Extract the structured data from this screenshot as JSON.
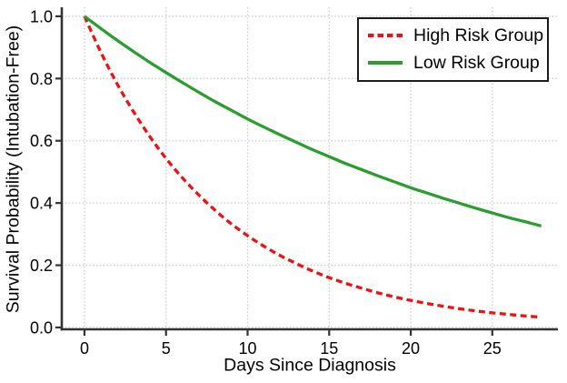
{
  "chart_data": {
    "type": "line",
    "xlabel": "Days Since Diagnosis",
    "ylabel": "Survival Probability (Intubation-Free)",
    "xlim": [
      -1.39,
      29.02
    ],
    "ylim": [
      -0.006,
      1.029
    ],
    "xticks": [
      0,
      5,
      10,
      15,
      20,
      25
    ],
    "xtick_labels": [
      "0",
      "5",
      "10",
      "15",
      "20",
      "25"
    ],
    "yticks": [
      0.0,
      0.2,
      0.4,
      0.6,
      0.8,
      1.0
    ],
    "ytick_labels": [
      "0.0",
      "0.2",
      "0.4",
      "0.6",
      "0.8",
      "1.0"
    ],
    "grid": true,
    "grid_style": "dotted",
    "legend_position": "upper right",
    "x": [
      0,
      1,
      2,
      3,
      4,
      5,
      6,
      7,
      8,
      9,
      10,
      11,
      12,
      13,
      14,
      15,
      16,
      17,
      18,
      19,
      20,
      21,
      22,
      23,
      24,
      25,
      26,
      27,
      28
    ],
    "series": [
      {
        "name": "High Risk Group",
        "color": "#ee1111",
        "style": "dashed",
        "values": [
          1.0,
          0.885,
          0.783,
          0.694,
          0.614,
          0.543,
          0.481,
          0.426,
          0.377,
          0.333,
          0.295,
          0.261,
          0.231,
          0.205,
          0.181,
          0.16,
          0.142,
          0.126,
          0.111,
          0.098,
          0.087,
          0.077,
          0.068,
          0.06,
          0.053,
          0.047,
          0.042,
          0.037,
          0.033
        ]
      },
      {
        "name": "Low Risk Group",
        "color": "#2a9d2e",
        "style": "solid",
        "values": [
          1.0,
          0.961,
          0.923,
          0.887,
          0.852,
          0.819,
          0.787,
          0.756,
          0.726,
          0.698,
          0.67,
          0.644,
          0.619,
          0.595,
          0.571,
          0.549,
          0.527,
          0.507,
          0.487,
          0.468,
          0.449,
          0.432,
          0.415,
          0.399,
          0.383,
          0.368,
          0.353,
          0.34,
          0.326
        ]
      }
    ],
    "colors": {
      "spine": "#333333",
      "grid": "#c8c8c8",
      "text": "#000000",
      "background": "#ffffff"
    }
  }
}
